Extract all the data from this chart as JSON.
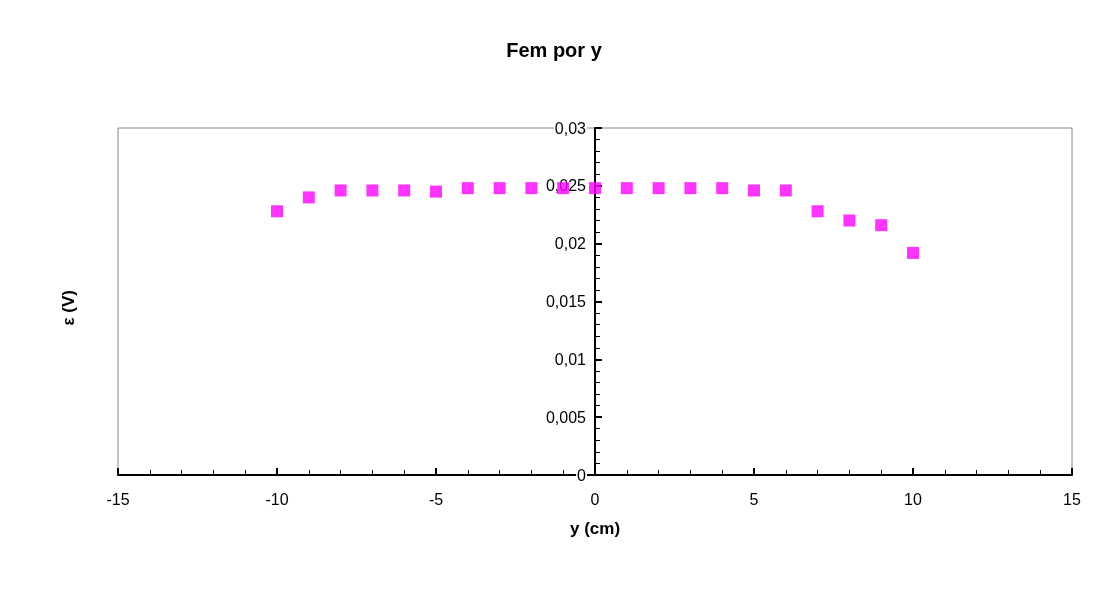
{
  "chart_data": {
    "type": "scatter",
    "title": "Fem por y",
    "xlabel": "y (cm)",
    "ylabel": "ε (V)",
    "x": [
      -10,
      -9,
      -8,
      -7,
      -6,
      -5,
      -4,
      -3,
      -2,
      -1,
      0,
      1,
      2,
      3,
      4,
      5,
      6,
      7,
      8,
      9,
      10
    ],
    "series": [
      {
        "color": "#ff00ff",
        "values": [
          0.0228,
          0.024,
          0.0246,
          0.0246,
          0.0246,
          0.0245,
          0.0248,
          0.0248,
          0.0248,
          0.0248,
          0.0248,
          0.0248,
          0.0248,
          0.0248,
          0.0248,
          0.0246,
          0.0246,
          0.0228,
          0.022,
          0.0216,
          0.0192
        ]
      }
    ],
    "xlim": [
      -15,
      15
    ],
    "xticks": [
      -15,
      -10,
      -5,
      0,
      5,
      10,
      15
    ],
    "ylim": [
      0,
      0.03
    ],
    "yticks": [
      0,
      {
        "value": 0.005,
        "label": "0,005"
      },
      {
        "value": 0.01,
        "label": "0,01"
      },
      {
        "value": 0.015,
        "label": "0,015"
      },
      {
        "value": 0.02,
        "label": "0,02"
      },
      {
        "value": 0.025,
        "label": "0,025"
      },
      {
        "value": 0.03,
        "label": "0,03"
      }
    ],
    "marker": "square"
  }
}
